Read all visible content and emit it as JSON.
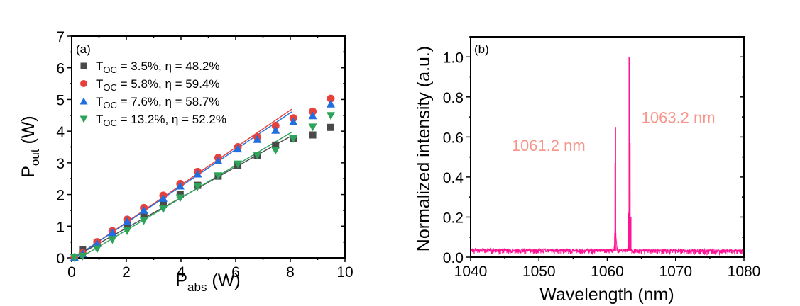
{
  "chart_data": [
    {
      "type": "scatter",
      "panel_label": "(a)",
      "xlabel": {
        "main": "P",
        "sub": "abs",
        "unit": " (W)"
      },
      "ylabel": {
        "main": "P",
        "sub": "out",
        "unit": " (W)"
      },
      "xlim": [
        0,
        10
      ],
      "ylim": [
        0,
        7
      ],
      "xticks": [
        0,
        2,
        4,
        6,
        8,
        10
      ],
      "yticks": [
        0,
        1,
        2,
        3,
        4,
        5,
        6,
        7
      ],
      "grid": false,
      "legend_position": "top-left",
      "series": [
        {
          "name": "Toc = 3.5%,   η = 48.2%",
          "legend": {
            "t": "T",
            "sub": "OC",
            "rest": " = 3.5%,   η = 48.2%"
          },
          "marker": "square",
          "color": "#4a4a4a",
          "x": [
            0.1,
            0.4,
            0.93,
            1.49,
            2.03,
            2.64,
            3.35,
            3.97,
            4.61,
            5.36,
            6.08,
            6.79,
            7.46,
            8.11,
            8.82,
            9.48
          ],
          "y": [
            0.02,
            0.25,
            0.47,
            0.8,
            1.04,
            1.34,
            1.69,
            2.01,
            2.29,
            2.58,
            2.91,
            3.24,
            3.56,
            3.76,
            3.88,
            4.12
          ],
          "fit": {
            "slope": 0.482,
            "x_range": [
              0.1,
              8.05
            ],
            "intercept_x": 0.05
          }
        },
        {
          "name": "Toc = 5.8%,   η = 59.4%",
          "legend": {
            "t": "T",
            "sub": "OC",
            "rest": " = 5.8%,   η = 59.4%"
          },
          "marker": "circle",
          "color": "#e8413c",
          "x": [
            0.1,
            0.4,
            0.93,
            1.49,
            2.03,
            2.64,
            3.35,
            3.97,
            4.61,
            5.36,
            6.08,
            6.79,
            7.46,
            8.11,
            8.82,
            9.48
          ],
          "y": [
            0.02,
            0.15,
            0.5,
            0.85,
            1.21,
            1.58,
            1.97,
            2.34,
            2.72,
            3.16,
            3.5,
            3.82,
            4.17,
            4.41,
            4.62,
            5.03
          ],
          "fit": {
            "slope": 0.594,
            "x_range": [
              0.1,
              8.05
            ],
            "intercept_x": 0.15
          }
        },
        {
          "name": "Toc = 7.6%,   η = 58.7%",
          "legend": {
            "t": "T",
            "sub": "OC",
            "rest": " = 7.6%,   η = 58.7%"
          },
          "marker": "triangle-up",
          "color": "#1f6fe0",
          "x": [
            0.1,
            0.4,
            0.93,
            1.49,
            2.03,
            2.64,
            3.35,
            3.97,
            4.61,
            5.36,
            6.08,
            6.79,
            7.46,
            8.11,
            8.82,
            9.48
          ],
          "y": [
            0.02,
            0.13,
            0.45,
            0.8,
            1.15,
            1.5,
            1.88,
            2.27,
            2.65,
            3.07,
            3.44,
            3.74,
            4.03,
            4.3,
            4.49,
            4.86
          ],
          "fit": {
            "slope": 0.587,
            "x_range": [
              0.1,
              8.05
            ],
            "intercept_x": 0.2
          }
        },
        {
          "name": "Toc = 13.2%, η = 52.2%",
          "legend": {
            "t": "T",
            "sub": "OC",
            "rest": " = 13.2%, η = 52.2%"
          },
          "marker": "triangle-down",
          "color": "#2ea35a",
          "x": [
            0.1,
            0.4,
            0.93,
            1.49,
            2.03,
            2.64,
            3.35,
            3.97,
            4.61,
            5.36,
            6.08,
            6.79,
            7.46,
            8.11,
            8.82,
            9.48
          ],
          "y": [
            0.0,
            0.05,
            0.28,
            0.57,
            0.85,
            1.17,
            1.54,
            1.89,
            2.25,
            2.59,
            2.96,
            3.24,
            3.39,
            3.76,
            4.13,
            4.49
          ],
          "fit": {
            "slope": 0.522,
            "x_range": [
              0.3,
              8.05
            ],
            "intercept_x": 0.45
          }
        }
      ]
    },
    {
      "type": "line",
      "panel_label": "(b)",
      "xlabel": "Wavelength (nm)",
      "ylabel": "Normalized intensity (a.u.)",
      "xlim": [
        1040,
        1080
      ],
      "ylim": [
        0,
        1.1
      ],
      "xticks": [
        1040,
        1050,
        1060,
        1070,
        1080
      ],
      "yticks": [
        "0.0",
        "0.2",
        "0.4",
        "0.6",
        "0.8",
        "1.0"
      ],
      "grid": false,
      "line_color": "#ff1493",
      "annotation_color": "#f8958a",
      "baseline_level": 0.03,
      "peaks": [
        {
          "center": 1061.2,
          "height": 0.65,
          "shoulders": [
            {
              "offset": -0.05,
              "height": 0.47
            },
            {
              "offset": -0.1,
              "height": 0.12
            }
          ]
        },
        {
          "center": 1063.2,
          "height": 1.0,
          "shoulders": [
            {
              "offset": 0.12,
              "height": 0.57
            },
            {
              "offset": 0.25,
              "height": 0.2
            },
            {
              "offset": -0.1,
              "height": 0.22
            }
          ]
        }
      ],
      "annotations": [
        {
          "text": "1061.2 nm",
          "x": 1046.0,
          "y": 0.53
        },
        {
          "text": "1063.2 nm",
          "x": 1065.0,
          "y": 0.67
        }
      ]
    }
  ]
}
